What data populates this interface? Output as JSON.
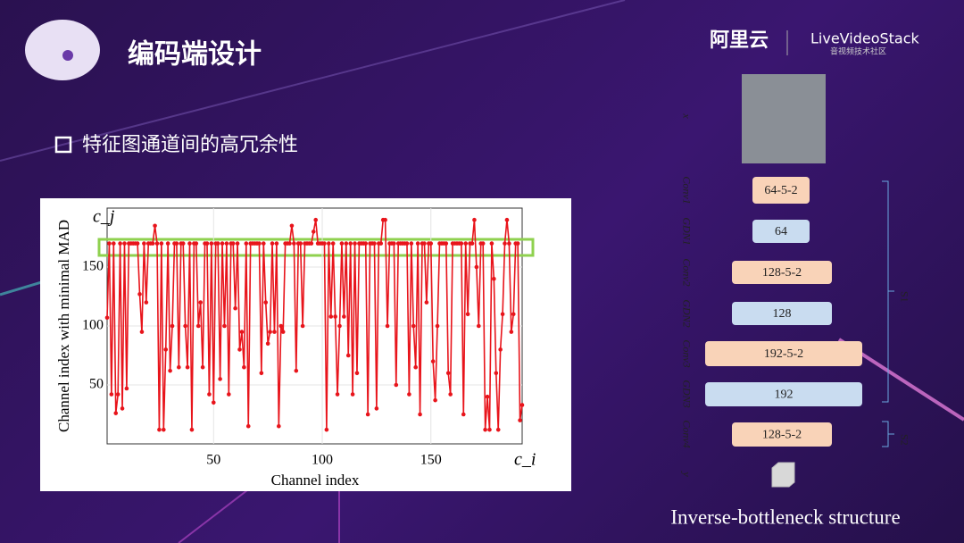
{
  "header": {
    "title": "编码端设计",
    "logo_left": "阿里云",
    "logo_right": "LiveVideoStack",
    "logo_right_sub": "音视频技术社区"
  },
  "bullet": "特征图通道间的高冗余性",
  "chart_data": {
    "type": "line",
    "y_label": "Channel index with minimal MAD",
    "x_label": "Channel index",
    "y_corner": "c_j",
    "x_corner": "c_i",
    "color": "#e8141b",
    "x": [
      1,
      2,
      3,
      4,
      5,
      6,
      7,
      8,
      9,
      10,
      11,
      12,
      13,
      14,
      15,
      16,
      17,
      18,
      19,
      20,
      21,
      22,
      23,
      24,
      25,
      26,
      27,
      28,
      29,
      30,
      31,
      32,
      33,
      34,
      35,
      36,
      37,
      38,
      39,
      40,
      41,
      42,
      43,
      44,
      45,
      46,
      47,
      48,
      49,
      50,
      51,
      52,
      53,
      54,
      55,
      56,
      57,
      58,
      59,
      60,
      61,
      62,
      63,
      64,
      65,
      66,
      67,
      68,
      69,
      70,
      71,
      72,
      73,
      74,
      75,
      76,
      77,
      78,
      79,
      80,
      81,
      82,
      83,
      84,
      85,
      86,
      87,
      88,
      89,
      90,
      91,
      92,
      93,
      94,
      95,
      96,
      97,
      98,
      99,
      100,
      101,
      102,
      103,
      104,
      105,
      106,
      107,
      108,
      109,
      110,
      111,
      112,
      113,
      114,
      115,
      116,
      117,
      118,
      119,
      120,
      121,
      122,
      123,
      124,
      125,
      126,
      127,
      128,
      129,
      130,
      131,
      132,
      133,
      134,
      135,
      136,
      137,
      138,
      139,
      140,
      141,
      142,
      143,
      144,
      145,
      146,
      147,
      148,
      149,
      150,
      151,
      152,
      153,
      154,
      155,
      156,
      157,
      158,
      159,
      160,
      161,
      162,
      163,
      164,
      165,
      166,
      167,
      168,
      169,
      170,
      171,
      172,
      173,
      174,
      175,
      176,
      177,
      178,
      179,
      180,
      181,
      182,
      183,
      184,
      185,
      186,
      187,
      188,
      189,
      190,
      191,
      192
    ],
    "values": [
      107,
      170,
      42,
      170,
      26,
      42,
      170,
      30,
      170,
      47,
      170,
      170,
      170,
      170,
      170,
      127,
      95,
      170,
      120,
      170,
      170,
      170,
      185,
      170,
      12,
      170,
      12,
      80,
      170,
      62,
      100,
      170,
      170,
      65,
      170,
      170,
      100,
      65,
      170,
      12,
      170,
      170,
      100,
      120,
      65,
      170,
      170,
      42,
      170,
      35,
      170,
      170,
      55,
      170,
      100,
      170,
      42,
      170,
      170,
      115,
      170,
      80,
      95,
      65,
      170,
      15,
      170,
      170,
      170,
      170,
      170,
      60,
      170,
      120,
      85,
      95,
      170,
      95,
      170,
      15,
      100,
      95,
      170,
      170,
      170,
      185,
      170,
      62,
      170,
      170,
      100,
      170,
      170,
      170,
      170,
      180,
      190,
      170,
      170,
      170,
      170,
      12,
      170,
      108,
      170,
      108,
      42,
      100,
      170,
      108,
      170,
      75,
      170,
      42,
      170,
      60,
      170,
      170,
      170,
      170,
      25,
      170,
      170,
      170,
      30,
      170,
      170,
      190,
      190,
      100,
      170,
      170,
      170,
      50,
      170,
      170,
      170,
      170,
      170,
      42,
      170,
      100,
      65,
      170,
      25,
      170,
      170,
      120,
      170,
      170,
      70,
      37,
      100,
      170,
      170,
      170,
      170,
      60,
      42,
      170,
      170,
      170,
      170,
      170,
      25,
      170,
      110,
      170,
      170,
      190,
      150,
      100,
      170,
      170,
      12,
      40,
      12,
      170,
      140,
      60,
      12,
      80,
      110,
      170,
      190,
      170,
      95,
      110,
      170,
      170,
      20,
      33
    ],
    "xlim": [
      1,
      192
    ],
    "ylim": [
      0,
      200
    ],
    "xticks": [
      50,
      100,
      150
    ],
    "yticks": [
      50,
      100,
      150
    ],
    "grid": true
  },
  "diagram": {
    "caption": "Inverse-bottleneck structure",
    "side_labels": [
      "x",
      "Conv1",
      "GDN1",
      "Conv2",
      "GDN2",
      "Conv3",
      "GDN3",
      "Conv4",
      "y"
    ],
    "nodes": [
      "64-5-2",
      "64",
      "128-5-2",
      "128",
      "192-5-2",
      "192",
      "128-5-2"
    ],
    "brackets": [
      "S1",
      "S2"
    ]
  }
}
